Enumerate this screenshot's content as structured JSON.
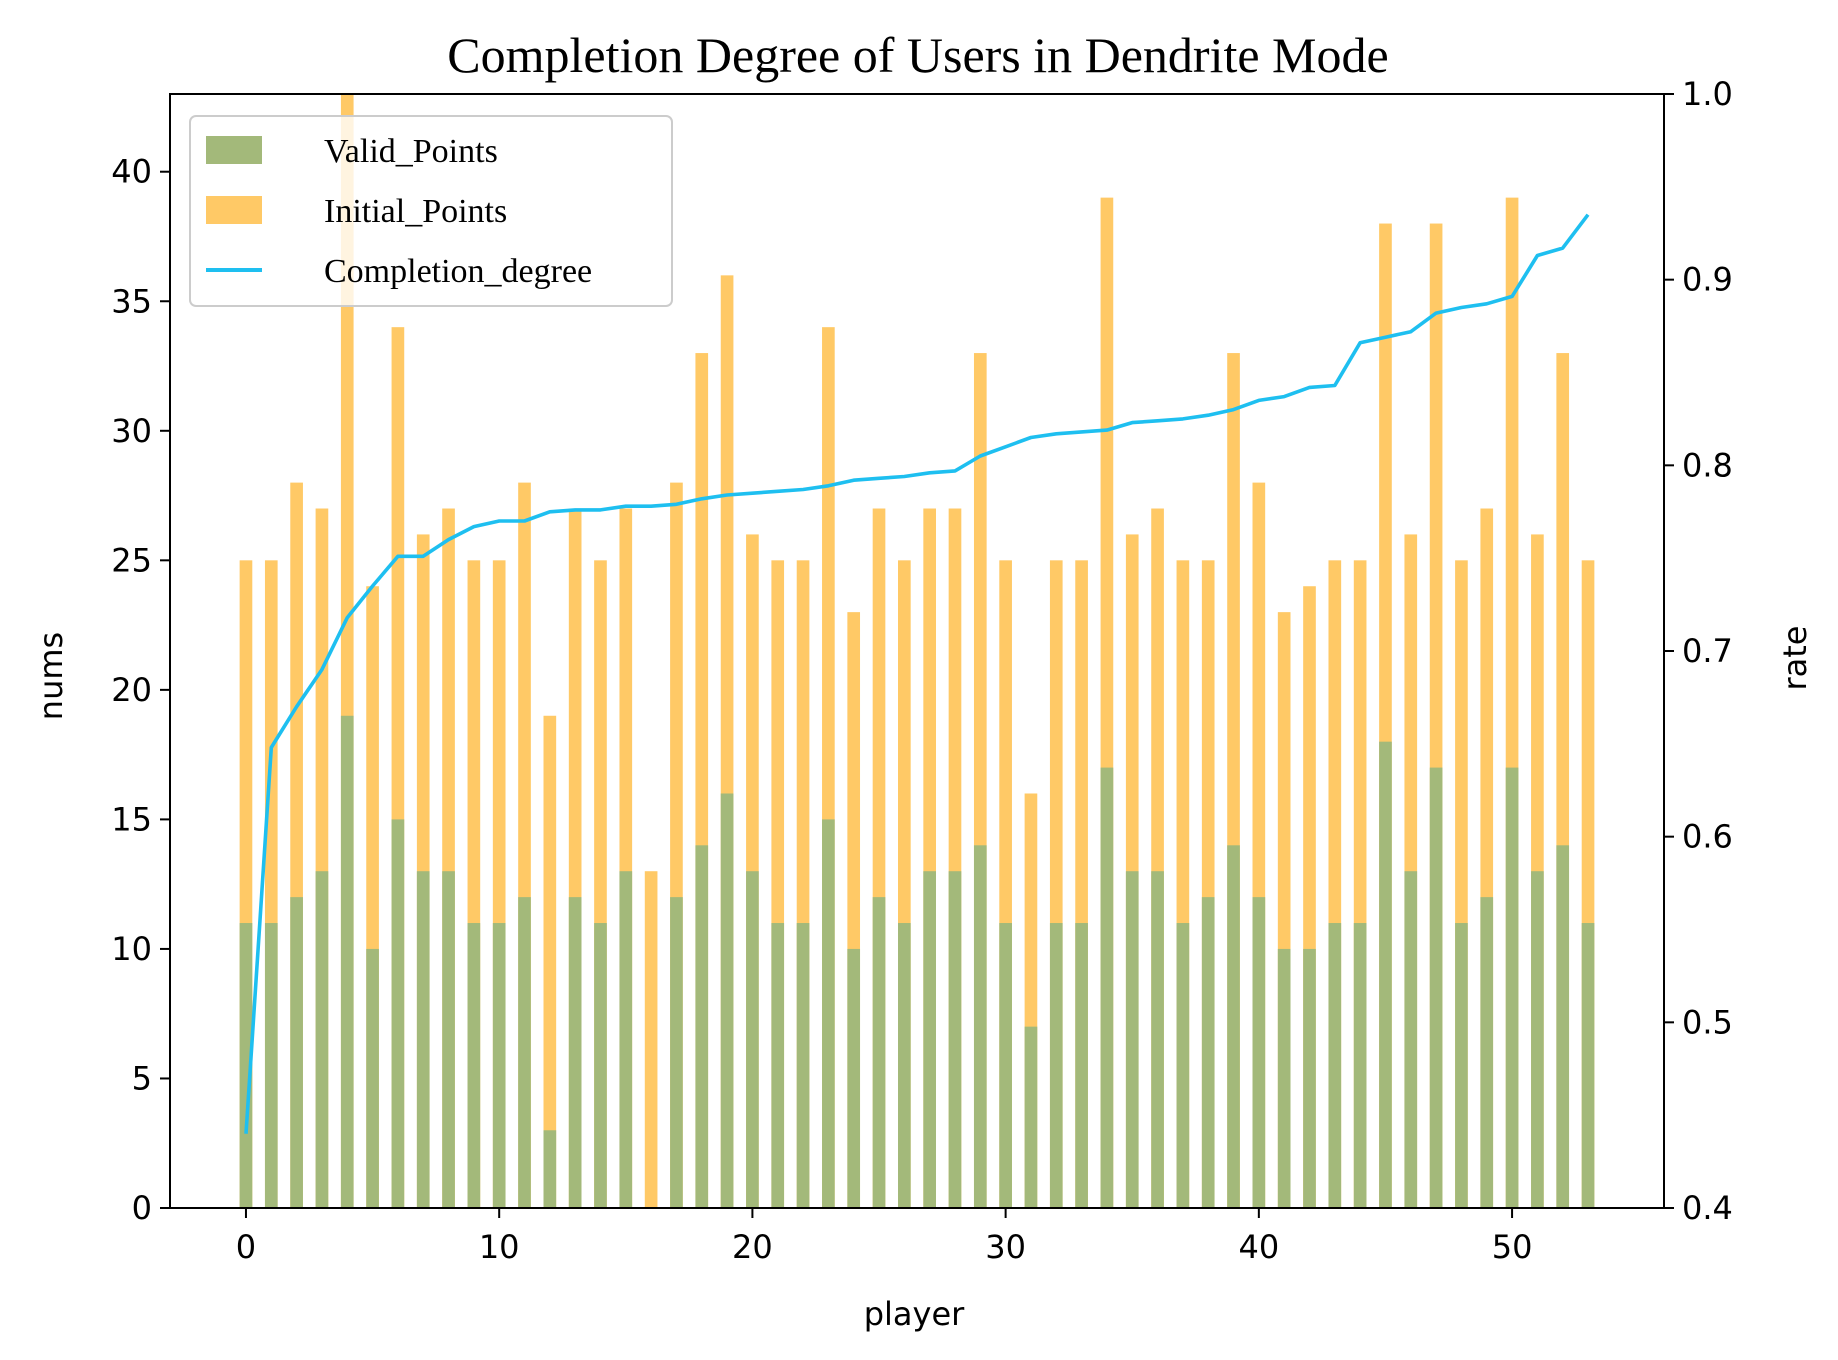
{
  "chart_data": {
    "type": "bar",
    "title": "Completion Degree of Users in Dendrite Mode",
    "xlabel": "player",
    "ylabel": "nums",
    "y2label": "rate",
    "x": [
      0,
      1,
      2,
      3,
      4,
      5,
      6,
      7,
      8,
      9,
      10,
      11,
      12,
      13,
      14,
      15,
      16,
      17,
      18,
      19,
      20,
      21,
      22,
      23,
      24,
      25,
      26,
      27,
      28,
      29,
      30,
      31,
      32,
      33,
      34,
      35,
      36,
      37,
      38,
      39,
      40,
      41,
      42,
      43,
      44,
      45,
      46,
      47,
      48,
      49,
      50,
      51,
      52,
      53
    ],
    "xlim": [
      -3,
      56
    ],
    "ylim": [
      0,
      43
    ],
    "y2lim": [
      0.4,
      1.0
    ],
    "xticks": [
      0,
      10,
      20,
      30,
      40,
      50
    ],
    "yticks": [
      0,
      5,
      10,
      15,
      20,
      25,
      30,
      35,
      40
    ],
    "y2ticks": [
      0.4,
      0.5,
      0.6,
      0.7,
      0.8,
      0.9,
      1.0
    ],
    "grid": false,
    "legend_position": "top-left",
    "series": [
      {
        "name": "Valid_Points",
        "kind": "bar",
        "color": "#a3b97a",
        "values": [
          11,
          11,
          12,
          13,
          19,
          10,
          15,
          13,
          13,
          11,
          11,
          12,
          3,
          12,
          11,
          13,
          0,
          12,
          14,
          16,
          13,
          11,
          11,
          15,
          10,
          12,
          11,
          13,
          13,
          14,
          11,
          7,
          11,
          11,
          17,
          13,
          13,
          11,
          12,
          14,
          12,
          10,
          10,
          11,
          11,
          18,
          13,
          17,
          11,
          12,
          17,
          13,
          14,
          11
        ]
      },
      {
        "name": "Initial_Points",
        "kind": "bar",
        "color": "#ffc966",
        "values": [
          25,
          25,
          28,
          27,
          43,
          24,
          34,
          26,
          27,
          25,
          25,
          28,
          19,
          27,
          25,
          27,
          13,
          28,
          33,
          36,
          26,
          25,
          25,
          34,
          23,
          27,
          25,
          27,
          27,
          33,
          25,
          16,
          25,
          25,
          39,
          26,
          27,
          25,
          25,
          33,
          28,
          23,
          24,
          25,
          25,
          38,
          26,
          38,
          25,
          27,
          39,
          26,
          33,
          25
        ]
      },
      {
        "name": "Completion_degree",
        "kind": "line",
        "axis": "right",
        "color": "#1ebff0",
        "values": [
          0.44,
          0.648,
          0.67,
          0.69,
          0.718,
          0.735,
          0.751,
          0.751,
          0.76,
          0.767,
          0.77,
          0.77,
          0.775,
          0.776,
          0.776,
          0.778,
          0.778,
          0.779,
          0.782,
          0.784,
          0.785,
          0.786,
          0.787,
          0.789,
          0.792,
          0.793,
          0.794,
          0.796,
          0.797,
          0.805,
          0.81,
          0.815,
          0.817,
          0.818,
          0.819,
          0.823,
          0.824,
          0.825,
          0.827,
          0.83,
          0.835,
          0.837,
          0.842,
          0.843,
          0.866,
          0.869,
          0.872,
          0.882,
          0.885,
          0.887,
          0.891,
          0.913,
          0.917,
          0.935
        ]
      }
    ]
  }
}
